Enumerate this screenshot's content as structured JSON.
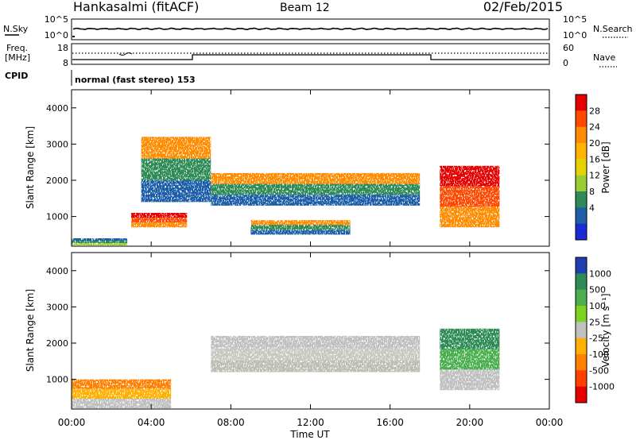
{
  "header": {
    "station": "Hankasalmi (fitACF)",
    "beam": "Beam 12",
    "date": "02/Feb/2015"
  },
  "noise_panel": {
    "left_label": "N.Sky",
    "right_label": "N.Search",
    "left_ticks": [
      "10^5",
      "10^0"
    ],
    "right_ticks": [
      "10^5",
      "10^0"
    ]
  },
  "freq_panel": {
    "left_label_line1": "Freq.",
    "left_label_line2": "[MHz]",
    "left_ticks": [
      "18",
      "8"
    ],
    "right_label": "Nave",
    "right_ticks": [
      "60",
      "0"
    ]
  },
  "cpid": {
    "label": "CPID",
    "text": "normal (fast stereo) 153"
  },
  "x_axis": {
    "label": "Time UT",
    "ticks": [
      "00:00",
      "04:00",
      "08:00",
      "12:00",
      "16:00",
      "20:00",
      "00:00"
    ]
  },
  "chart_data": [
    {
      "type": "heatmap",
      "title": "",
      "ylabel": "Slant Range [km]",
      "y_ticks": [
        1000,
        2000,
        3000,
        4000
      ],
      "ylim": [
        180,
        4500
      ],
      "xlim_hours": [
        0,
        24
      ],
      "colorbar_label": "Power [dB]",
      "colorbar_ticks": [
        "28",
        "24",
        "20",
        "16",
        "12",
        "8",
        "4"
      ],
      "colorbar_colors": [
        "#e60000",
        "#ff4a00",
        "#ff8c00",
        "#ffb400",
        "#e6d200",
        "#9acd32",
        "#2e8b57",
        "#1f5fa8",
        "#1a2bd6"
      ],
      "features": [
        {
          "start_h": 0.0,
          "end_h": 2.8,
          "range_km": [
            200,
            400
          ],
          "level": "low"
        },
        {
          "start_h": 3.0,
          "end_h": 5.8,
          "range_km": [
            700,
            1100
          ],
          "level": "high"
        },
        {
          "start_h": 3.5,
          "end_h": 7.0,
          "range_km": [
            1400,
            3200
          ],
          "level": "medium"
        },
        {
          "start_h": 7.0,
          "end_h": 17.5,
          "range_km": [
            1300,
            2200
          ],
          "level": "medium"
        },
        {
          "start_h": 9.0,
          "end_h": 14.0,
          "range_km": [
            500,
            900
          ],
          "level": "medium"
        },
        {
          "start_h": 18.5,
          "end_h": 21.5,
          "range_km": [
            700,
            2400
          ],
          "level": "high"
        }
      ]
    },
    {
      "type": "heatmap",
      "title": "",
      "ylabel": "Slant Range [km]",
      "y_ticks": [
        1000,
        2000,
        3000,
        4000
      ],
      "ylim": [
        180,
        4500
      ],
      "xlim_hours": [
        0,
        24
      ],
      "colorbar_label": "Velocity [m s⁻¹]",
      "colorbar_ticks": [
        "1000",
        "500",
        "100",
        "25",
        "-25",
        "-100",
        "-500",
        "-1000"
      ],
      "colorbar_colors": [
        "#1f3fb0",
        "#2e8b57",
        "#4caf50",
        "#7ed321",
        "#c0c0c0",
        "#ffb000",
        "#ff7f00",
        "#ff4000",
        "#e60000"
      ],
      "features": [
        {
          "start_h": 0.0,
          "end_h": 5.0,
          "range_km": [
            200,
            1000
          ],
          "level": "negative"
        },
        {
          "start_h": 7.0,
          "end_h": 17.5,
          "range_km": [
            1200,
            2200
          ],
          "level": "near-zero"
        },
        {
          "start_h": 18.5,
          "end_h": 21.5,
          "range_km": [
            700,
            2400
          ],
          "level": "positive"
        }
      ]
    }
  ]
}
